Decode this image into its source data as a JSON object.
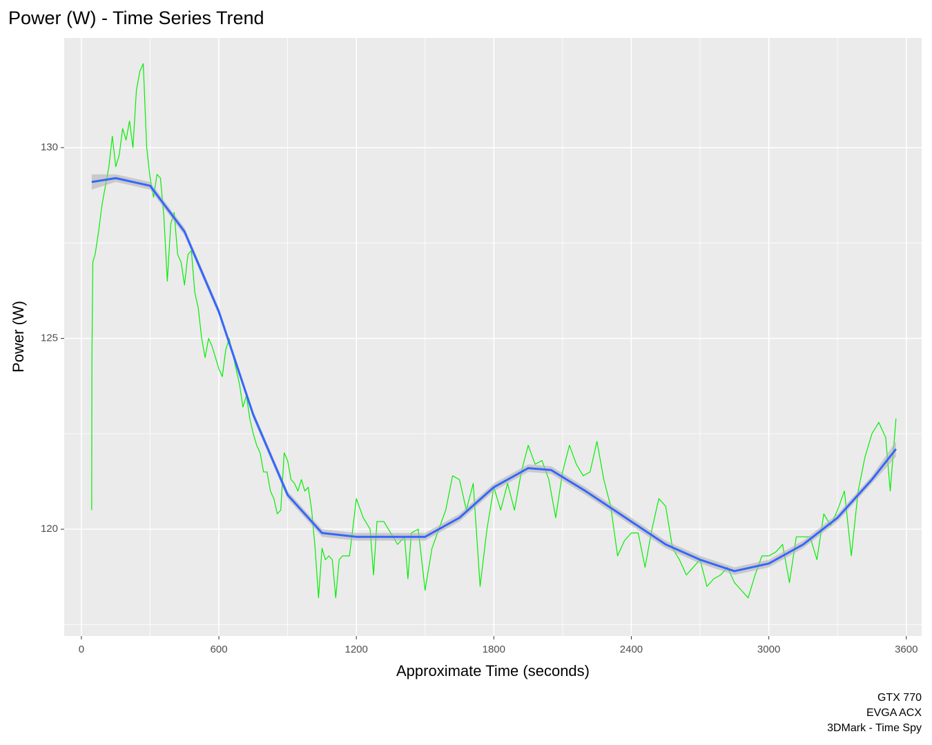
{
  "chart_data": {
    "type": "line",
    "title": "Power (W) - Time Series Trend",
    "x_label": "Approximate Time (seconds)",
    "y_label": "Power (W)",
    "caption": [
      "GTX 770",
      "EVGA ACX",
      "3DMark - Time Spy"
    ],
    "xlim": [
      -75,
      3667
    ],
    "ylim": [
      117.2,
      132.875
    ],
    "xticks": [
      0,
      600,
      1200,
      1800,
      2400,
      3000,
      3600
    ],
    "yticks": [
      120,
      125,
      130
    ],
    "x_minor_ticks": [
      300,
      900,
      1500,
      2100,
      2700,
      3300
    ],
    "y_minor_ticks": [
      117.5,
      122.5,
      127.5
    ],
    "grid": true,
    "series": [
      {
        "color": "#00ee00",
        "x": [
          45,
          46,
          50,
          60,
          75,
          90,
          105,
          120,
          135,
          150,
          165,
          180,
          195,
          210,
          225,
          240,
          255,
          270,
          285,
          300,
          315,
          330,
          345,
          360,
          375,
          390,
          405,
          420,
          435,
          450,
          465,
          480,
          495,
          510,
          525,
          540,
          555,
          570,
          585,
          600,
          615,
          630,
          645,
          660,
          675,
          690,
          705,
          720,
          735,
          750,
          765,
          780,
          795,
          810,
          825,
          840,
          855,
          870,
          885,
          900,
          915,
          930,
          945,
          960,
          975,
          990,
          1005,
          1020,
          1035,
          1050,
          1065,
          1080,
          1095,
          1110,
          1125,
          1140,
          1170,
          1200,
          1230,
          1260,
          1275,
          1290,
          1320,
          1350,
          1380,
          1410,
          1425,
          1440,
          1470,
          1500,
          1530,
          1560,
          1590,
          1620,
          1650,
          1680,
          1710,
          1740,
          1770,
          1800,
          1830,
          1860,
          1890,
          1920,
          1950,
          1980,
          2010,
          2040,
          2070,
          2100,
          2130,
          2160,
          2190,
          2220,
          2250,
          2280,
          2310,
          2340,
          2370,
          2400,
          2430,
          2460,
          2490,
          2520,
          2550,
          2580,
          2610,
          2640,
          2670,
          2700,
          2730,
          2760,
          2790,
          2820,
          2850,
          2880,
          2910,
          2940,
          2970,
          3000,
          3030,
          3060,
          3090,
          3120,
          3150,
          3180,
          3210,
          3240,
          3270,
          3300,
          3330,
          3360,
          3390,
          3420,
          3450,
          3480,
          3510,
          3530,
          3555
        ],
        "values": [
          120.5,
          124.5,
          127,
          127.2,
          127.8,
          128.5,
          129,
          129.5,
          130.3,
          129.5,
          129.8,
          130.5,
          130.2,
          130.7,
          130,
          131.5,
          132,
          132.2,
          130,
          129.2,
          128.7,
          129.3,
          129.2,
          128.2,
          126.5,
          128,
          128.3,
          127.2,
          127,
          126.4,
          127.2,
          127.3,
          126.2,
          125.8,
          125,
          124.5,
          125,
          124.8,
          124.5,
          124.2,
          124,
          124.7,
          125,
          124.6,
          124.2,
          123.8,
          123.2,
          123.5,
          122.9,
          122.5,
          122.2,
          122,
          121.5,
          121.5,
          121,
          120.8,
          120.4,
          120.5,
          122,
          121.8,
          121.3,
          121.2,
          121,
          121.3,
          121,
          121.1,
          120.5,
          119.5,
          118.2,
          119.5,
          119.2,
          119.3,
          119.2,
          118.2,
          119.2,
          119.3,
          119.3,
          120.8,
          120.3,
          120,
          118.8,
          120.2,
          120.2,
          119.9,
          119.6,
          119.8,
          118.7,
          119.9,
          120,
          118.4,
          119.5,
          120,
          120.5,
          121.4,
          121.3,
          120.5,
          121.2,
          118.5,
          120,
          121.1,
          120.5,
          121.2,
          120.5,
          121.5,
          122.2,
          121.7,
          121.8,
          121.3,
          120.3,
          121.5,
          122.2,
          121.7,
          121.4,
          121.5,
          122.3,
          121.3,
          120.6,
          119.3,
          119.7,
          119.9,
          119.9,
          119,
          120,
          120.8,
          120.6,
          119.5,
          119.2,
          118.8,
          119,
          119.2,
          118.5,
          118.7,
          118.8,
          119,
          118.6,
          118.4,
          118.2,
          118.8,
          119.3,
          119.3,
          119.4,
          119.6,
          118.6,
          119.8,
          119.8,
          119.8,
          119.2,
          120.4,
          120.1,
          120.5,
          121,
          119.3,
          121,
          121.9,
          122.5,
          122.8,
          122.4,
          121,
          122.9
        ]
      },
      {
        "color": "#3366ff",
        "band_color": "#b3b3b3",
        "x": [
          45,
          150,
          300,
          450,
          600,
          750,
          900,
          1050,
          1200,
          1350,
          1500,
          1650,
          1800,
          1950,
          2050,
          2200,
          2400,
          2550,
          2700,
          2850,
          3000,
          3150,
          3300,
          3450,
          3555
        ],
        "values": [
          129.1,
          129.2,
          129,
          127.8,
          125.7,
          123,
          120.9,
          119.9,
          119.8,
          119.8,
          119.8,
          120.3,
          121.1,
          121.6,
          121.55,
          121,
          120.2,
          119.6,
          119.2,
          118.9,
          119.1,
          119.6,
          120.3,
          121.3,
          122.1
        ],
        "lower": [
          128.9,
          129.1,
          128.9,
          127.7,
          125.6,
          122.9,
          120.8,
          119.8,
          119.7,
          119.7,
          119.7,
          120.2,
          121,
          121.5,
          121.45,
          120.9,
          120.1,
          119.5,
          119.1,
          118.8,
          119,
          119.5,
          120.2,
          121.2,
          121.9
        ],
        "upper": [
          129.3,
          129.3,
          129.1,
          127.9,
          125.8,
          123.1,
          121,
          120,
          119.9,
          119.9,
          119.9,
          120.4,
          121.2,
          121.7,
          121.65,
          121.1,
          120.3,
          119.7,
          119.3,
          119,
          119.2,
          119.7,
          120.4,
          121.4,
          122.3
        ]
      }
    ]
  }
}
